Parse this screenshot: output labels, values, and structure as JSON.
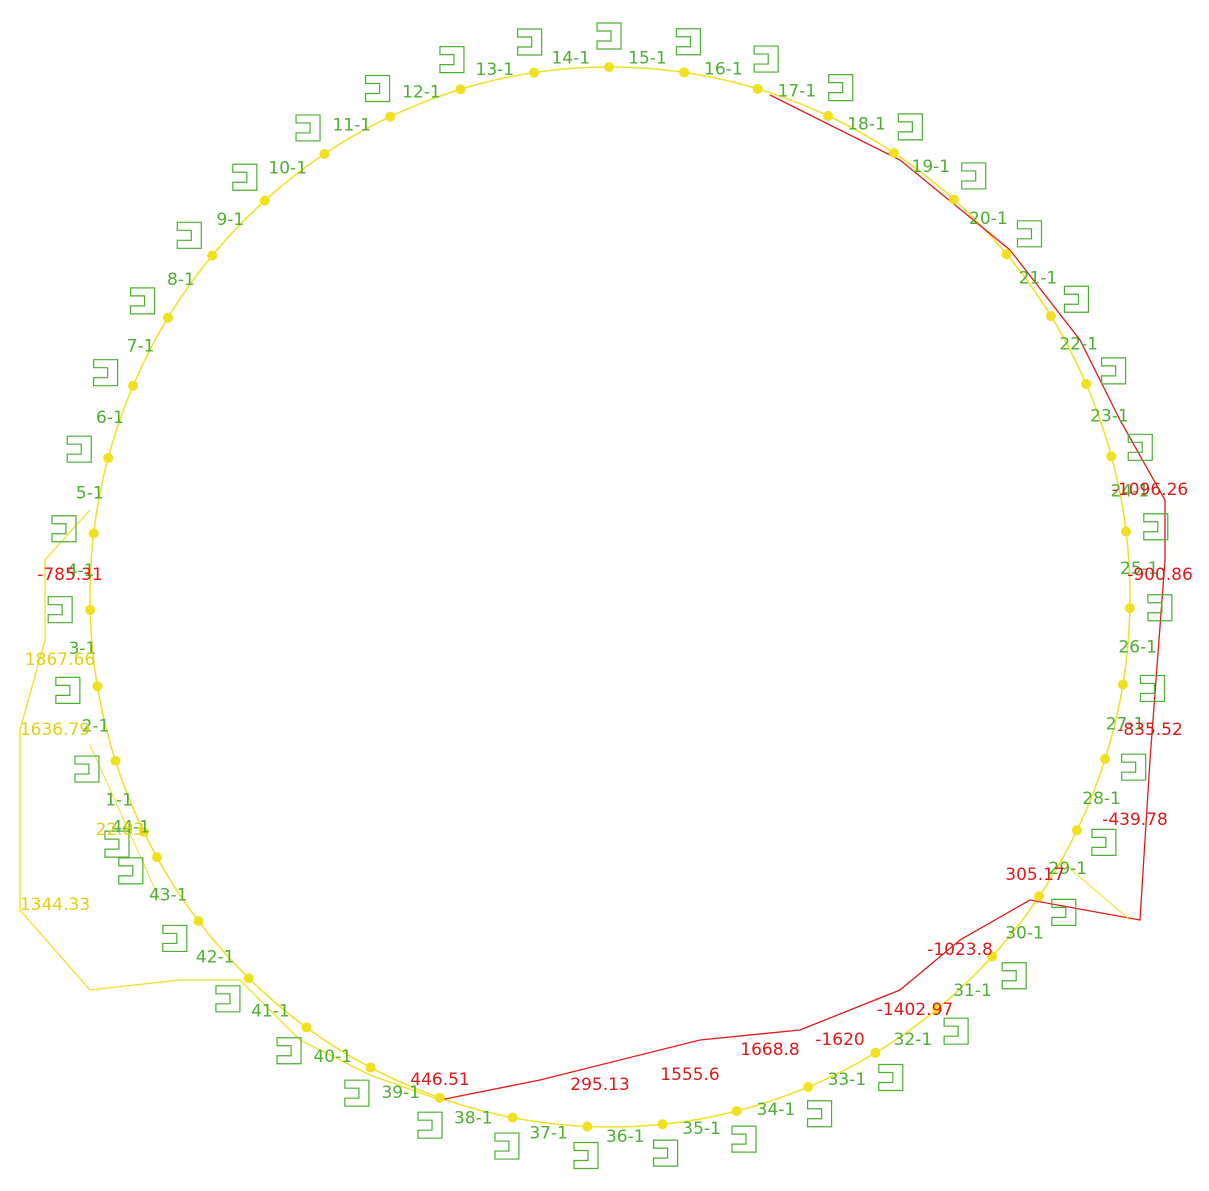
{
  "elements": [
    "1-1",
    "2-1",
    "3-1",
    "4-1",
    "5-1",
    "6-1",
    "7-1",
    "8-1",
    "9-1",
    "10-1",
    "11-1",
    "12-1",
    "13-1",
    "14-1",
    "15-1",
    "16-1",
    "17-1",
    "18-1",
    "19-1",
    "20-1",
    "21-1",
    "22-1",
    "23-1",
    "24-1",
    "25-1",
    "26-1",
    "27-1",
    "28-1",
    "29-1",
    "30-1",
    "31-1",
    "32-1",
    "33-1",
    "34-1",
    "35-1",
    "36-1",
    "37-1",
    "38-1",
    "39-1",
    "40-1",
    "41-1",
    "42-1",
    "43-1",
    "44-1"
  ],
  "results": [
    "-900.86",
    "-1096.26",
    "-835.52",
    "-439.78",
    "305.17",
    "-1023.8",
    "-1402.97",
    "-1620",
    "1668.8",
    "1555.6",
    "295.13",
    "446.51",
    "-785.31",
    "1867.66",
    "1636.79",
    "1344.33",
    "22.83"
  ]
}
